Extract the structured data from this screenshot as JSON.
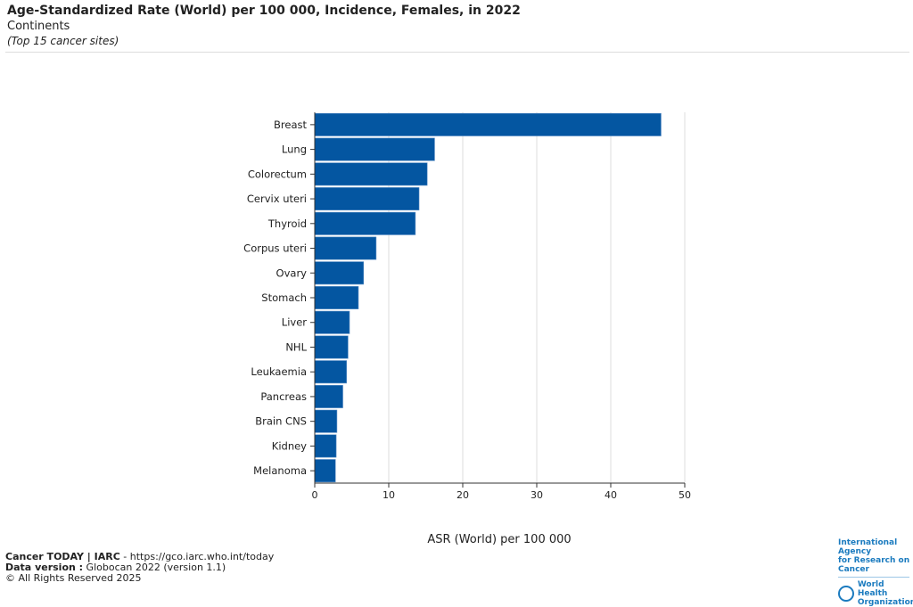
{
  "header": {
    "title": "Age-Standardized Rate (World) per 100 000, Incidence, Females, in 2022",
    "subtitle": "Continents",
    "note": "(Top 15 cancer sites)"
  },
  "chart_data": {
    "type": "bar",
    "orientation": "horizontal",
    "categories": [
      "Breast",
      "Lung",
      "Colorectum",
      "Cervix uteri",
      "Thyroid",
      "Corpus uteri",
      "Ovary",
      "Stomach",
      "Liver",
      "NHL",
      "Leukaemia",
      "Pancreas",
      "Brain CNS",
      "Kidney",
      "Melanoma"
    ],
    "values": [
      46.8,
      16.2,
      15.2,
      14.1,
      13.6,
      8.3,
      6.6,
      5.9,
      4.7,
      4.5,
      4.3,
      3.8,
      3.0,
      2.9,
      2.8
    ],
    "xlabel": "ASR (World) per 100 000",
    "ylabel": "",
    "xlim": [
      0,
      50
    ],
    "xticks": [
      "0",
      "10",
      "20",
      "30",
      "40",
      "50"
    ],
    "grid": "vertical",
    "bar_color": "#0456a1"
  },
  "footer": {
    "line1_bold": "Cancer TODAY | IARC",
    "line1_rest": " - https://gco.iarc.who.int/today",
    "line2_bold": "Data version :",
    "line2_rest": " Globocan 2022 (version 1.1)",
    "line3": "© All Rights Reserved 2025"
  },
  "logo": {
    "iarc_line1": "International Agency",
    "iarc_line2": "for Research on Cancer",
    "who_line1": "World Health",
    "who_line2": "Organization"
  }
}
